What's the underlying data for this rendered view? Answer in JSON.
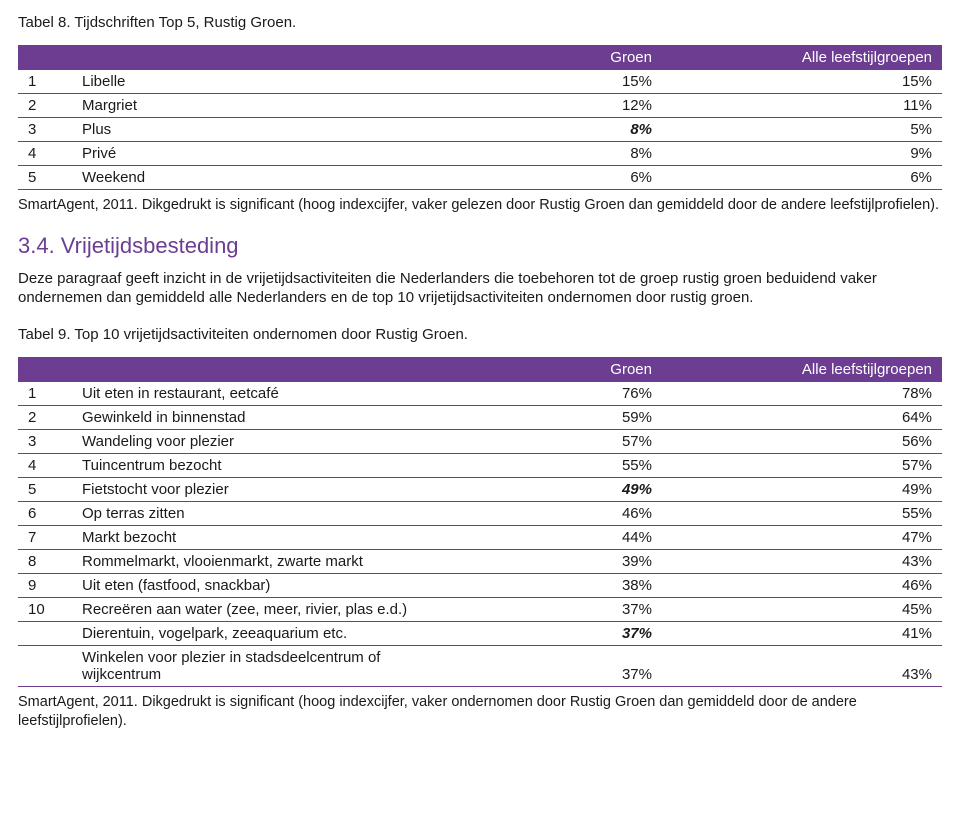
{
  "colors": {
    "accent": "#6c3d91",
    "text": "#1a1a1a",
    "header_text": "#ffffff",
    "background": "#ffffff",
    "row_border": "#6c3d91"
  },
  "typography": {
    "body_family": "Arial",
    "body_size_pt": 11,
    "heading_size_pt": 16
  },
  "table8": {
    "caption": "Tabel 8. Tijdschriften Top 5, Rustig Groen.",
    "columns": {
      "col1": "",
      "col2": "Groen",
      "col3": "Alle leefstijlgroepen"
    },
    "rows": [
      {
        "rank": "1",
        "label": "Libelle",
        "v1": "15%",
        "v2": "15%",
        "bold": false
      },
      {
        "rank": "2",
        "label": "Margriet",
        "v1": "12%",
        "v2": "11%",
        "bold": false
      },
      {
        "rank": "3",
        "label": "Plus",
        "v1": "8%",
        "v2": "5%",
        "bold": true
      },
      {
        "rank": "4",
        "label": "Privé",
        "v1": "8%",
        "v2": "9%",
        "bold": false
      },
      {
        "rank": "5",
        "label": "Weekend",
        "v1": "6%",
        "v2": "6%",
        "bold": false
      }
    ],
    "footnote": "SmartAgent, 2011. Dikgedrukt is significant (hoog indexcijfer, vaker gelezen door Rustig Groen dan gemiddeld door de andere leefstijlprofielen)."
  },
  "section": {
    "heading": "3.4. Vrijetijdsbesteding",
    "para": "Deze paragraaf geeft inzicht in de vrijetijdsactiviteiten die Nederlanders die toebehoren tot de groep rustig groen beduidend vaker ondernemen dan gemiddeld alle Nederlanders en de top 10 vrijetijdsactiviteiten ondernomen door rustig groen."
  },
  "table9": {
    "caption": "Tabel 9. Top 10 vrijetijdsactiviteiten ondernomen door Rustig Groen.",
    "columns": {
      "col1": "",
      "col2": "Groen",
      "col3": "Alle leefstijlgroepen"
    },
    "rows": [
      {
        "rank": "1",
        "label": "Uit eten in restaurant, eetcafé",
        "v1": "76%",
        "v2": "78%",
        "bold": false
      },
      {
        "rank": "2",
        "label": "Gewinkeld in binnenstad",
        "v1": "59%",
        "v2": "64%",
        "bold": false
      },
      {
        "rank": "3",
        "label": "Wandeling voor plezier",
        "v1": "57%",
        "v2": "56%",
        "bold": false
      },
      {
        "rank": "4",
        "label": "Tuincentrum bezocht",
        "v1": "55%",
        "v2": "57%",
        "bold": false
      },
      {
        "rank": "5",
        "label": "Fietstocht voor plezier",
        "v1": "49%",
        "v2": "49%",
        "bold": true
      },
      {
        "rank": "6",
        "label": "Op terras zitten",
        "v1": "46%",
        "v2": "55%",
        "bold": false
      },
      {
        "rank": "7",
        "label": "Markt bezocht",
        "v1": "44%",
        "v2": "47%",
        "bold": false
      },
      {
        "rank": "8",
        "label": "Rommelmarkt, vlooienmarkt, zwarte markt",
        "v1": "39%",
        "v2": "43%",
        "bold": false
      },
      {
        "rank": "9",
        "label": "Uit eten (fastfood, snackbar)",
        "v1": "38%",
        "v2": "46%",
        "bold": false
      },
      {
        "rank": "10",
        "label": "Recreëren aan water (zee, meer, rivier, plas e.d.)",
        "v1": "37%",
        "v2": "45%",
        "bold": false
      },
      {
        "rank": "",
        "label": "Dierentuin, vogelpark, zeeaquarium etc.",
        "v1": "37%",
        "v2": "41%",
        "bold": true
      },
      {
        "rank": "",
        "label": "Winkelen voor plezier in stadsdeelcentrum of wijkcentrum",
        "v1": "37%",
        "v2": "43%",
        "bold": false
      }
    ],
    "footnote": "SmartAgent, 2011. Dikgedrukt is significant (hoog indexcijfer, vaker ondernomen door Rustig Groen dan gemiddeld door de andere leefstijlprofielen)."
  }
}
